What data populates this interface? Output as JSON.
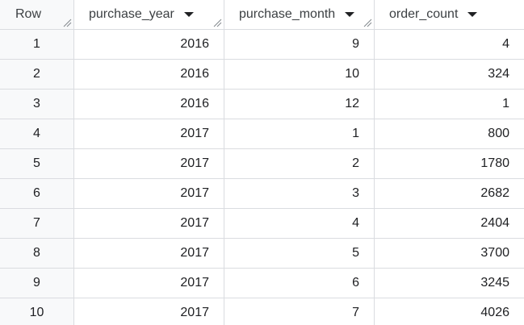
{
  "table": {
    "columns": [
      {
        "label": "Row",
        "sortable": false
      },
      {
        "label": "purchase_year",
        "sortable": true
      },
      {
        "label": "purchase_month",
        "sortable": true
      },
      {
        "label": "order_count",
        "sortable": true
      }
    ],
    "rows": [
      {
        "row": "1",
        "purchase_year": "2016",
        "purchase_month": "9",
        "order_count": "4"
      },
      {
        "row": "2",
        "purchase_year": "2016",
        "purchase_month": "10",
        "order_count": "324"
      },
      {
        "row": "3",
        "purchase_year": "2016",
        "purchase_month": "12",
        "order_count": "1"
      },
      {
        "row": "4",
        "purchase_year": "2017",
        "purchase_month": "1",
        "order_count": "800"
      },
      {
        "row": "5",
        "purchase_year": "2017",
        "purchase_month": "2",
        "order_count": "1780"
      },
      {
        "row": "6",
        "purchase_year": "2017",
        "purchase_month": "3",
        "order_count": "2682"
      },
      {
        "row": "7",
        "purchase_year": "2017",
        "purchase_month": "4",
        "order_count": "2404"
      },
      {
        "row": "8",
        "purchase_year": "2017",
        "purchase_month": "5",
        "order_count": "3700"
      },
      {
        "row": "9",
        "purchase_year": "2017",
        "purchase_month": "6",
        "order_count": "3245"
      },
      {
        "row": "10",
        "purchase_year": "2017",
        "purchase_month": "7",
        "order_count": "4026"
      }
    ]
  },
  "icons": {
    "sort": "sort-caret-icon",
    "resize": "column-resize-handle-icon"
  },
  "colors": {
    "border": "#dadce0",
    "row_header_bg": "#f8f9fa",
    "text": "#202124",
    "header_text": "#3c4043"
  }
}
